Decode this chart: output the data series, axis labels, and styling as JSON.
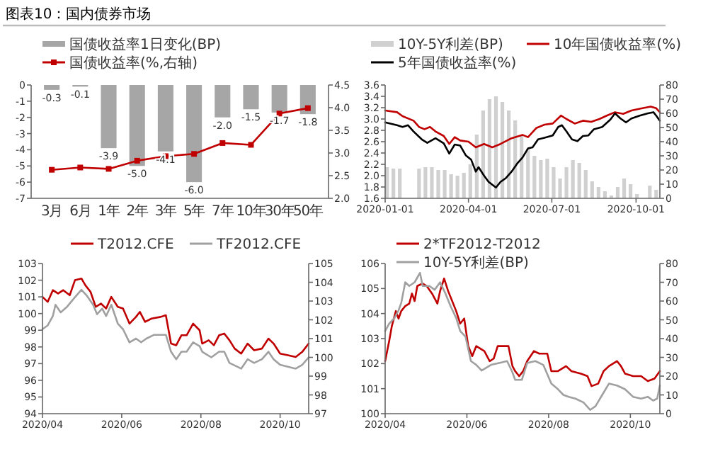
{
  "chart_data": [
    {
      "type": "bar",
      "title": "图表10：国内债券市场",
      "legend": "top",
      "categories": [
        "3月",
        "6月",
        "1年",
        "2年",
        "3年",
        "5年",
        "7年",
        "10年",
        "30年",
        "50年"
      ],
      "ylim": [
        -7,
        0
      ],
      "yticks": [
        -7,
        -6,
        -5,
        -4,
        -3,
        -2,
        -1,
        0
      ],
      "y2lim": [
        2,
        4.5
      ],
      "y2ticks": [
        {
          "value": 2,
          "label": "2.0"
        },
        2.5,
        {
          "value": 3,
          "label": "3.0"
        },
        3.5,
        {
          "value": 4,
          "label": "4.0"
        },
        4.5
      ],
      "series": [
        {
          "name": "国债收益率1日变化(BP)",
          "color": "#a6a6a6",
          "values": [
            -0.3,
            -0.1,
            -3.9,
            -5.0,
            -4.1,
            -6.0,
            -2.0,
            -1.5,
            -1.7,
            -1.8
          ],
          "value_labels": [
            "-0.3",
            "-0.1",
            "-3.9",
            "-5.0",
            "-4.1",
            "-6.0",
            "-2.0",
            "-1.5",
            "-1.7",
            "-1.8"
          ]
        },
        {
          "name": "国债收益率(%,右轴)",
          "type": "line",
          "axis": "y2",
          "color": "#c00000",
          "marker": "square",
          "values": [
            2.63,
            2.68,
            2.65,
            2.83,
            2.93,
            2.98,
            3.22,
            3.18,
            3.87,
            3.99
          ]
        }
      ]
    },
    {
      "type": "line",
      "legend": "top",
      "xlim": [
        "2020-01-01",
        "2020-10-27"
      ],
      "xticks": [
        {
          "value": "2020-01-01",
          "label": "2020-01-01"
        },
        {
          "value": "2020-04-01",
          "label": "2020-04-01"
        },
        {
          "value": "2020-07-01",
          "label": "2020-07-01"
        },
        {
          "value": "2020-10-01",
          "label": "2020-10-01"
        }
      ],
      "ylim": [
        1.6,
        3.6
      ],
      "yticks": [
        1.6,
        1.8,
        {
          "value": 2,
          "label": "2.0"
        },
        2.2,
        2.4,
        2.6,
        2.8,
        {
          "value": 3,
          "label": "3.0"
        },
        3.2,
        3.4,
        3.6
      ],
      "y2lim": [
        0,
        80
      ],
      "y2ticks": [
        0,
        10,
        20,
        30,
        40,
        50,
        60,
        70,
        80
      ],
      "series": [
        {
          "name": "10Y-5Y利差(BP)",
          "type": "bar",
          "axis": "y2",
          "color": "#d0d0d0",
          "x": [
            "2020-01-03",
            "2020-01-10",
            "2020-01-17",
            "2020-02-07",
            "2020-02-14",
            "2020-02-21",
            "2020-02-28",
            "2020-03-06",
            "2020-03-13",
            "2020-03-20",
            "2020-03-27",
            "2020-04-03",
            "2020-04-10",
            "2020-04-17",
            "2020-04-24",
            "2020-05-01",
            "2020-05-08",
            "2020-05-15",
            "2020-05-22",
            "2020-05-29",
            "2020-06-05",
            "2020-06-12",
            "2020-06-19",
            "2020-06-26",
            "2020-07-03",
            "2020-07-10",
            "2020-07-17",
            "2020-07-24",
            "2020-07-31",
            "2020-08-07",
            "2020-08-14",
            "2020-08-21",
            "2020-08-28",
            "2020-09-04",
            "2020-09-11",
            "2020-09-18",
            "2020-09-25",
            "2020-10-02",
            "2020-10-16",
            "2020-10-23"
          ],
          "values": [
            22,
            21,
            21,
            21,
            22,
            22,
            20,
            20,
            17,
            16,
            18,
            24,
            45,
            62,
            70,
            72,
            68,
            62,
            55,
            45,
            35,
            30,
            27,
            28,
            22,
            14,
            22,
            27,
            25,
            20,
            12,
            8,
            5,
            2,
            8,
            14,
            10,
            3,
            9,
            6
          ]
        },
        {
          "name": "10年国债收益率(%)",
          "color": "#c00000",
          "x": [
            "2020-01-01",
            "2020-01-14",
            "2020-01-20",
            "2020-02-01",
            "2020-02-07",
            "2020-02-13",
            "2020-02-19",
            "2020-02-25",
            "2020-03-05",
            "2020-03-11",
            "2020-03-17",
            "2020-03-23",
            "2020-04-01",
            "2020-04-09",
            "2020-04-18",
            "2020-04-27",
            "2020-05-06",
            "2020-05-18",
            "2020-05-30",
            "2020-06-05",
            "2020-06-14",
            "2020-06-23",
            "2020-07-02",
            "2020-07-11",
            "2020-07-17",
            "2020-07-26",
            "2020-08-04",
            "2020-08-13",
            "2020-08-22",
            "2020-08-30",
            "2020-09-08",
            "2020-09-17",
            "2020-09-26",
            "2020-10-08",
            "2020-10-17",
            "2020-10-23",
            "2020-10-27"
          ],
          "values": [
            3.15,
            3.12,
            3.05,
            2.97,
            2.86,
            2.82,
            2.86,
            2.78,
            2.7,
            2.56,
            2.68,
            2.62,
            2.6,
            2.5,
            2.56,
            2.5,
            2.56,
            2.66,
            2.72,
            2.68,
            2.84,
            2.9,
            2.92,
            3.06,
            3.0,
            2.92,
            2.97,
            2.95,
            3.0,
            3.06,
            3.12,
            3.09,
            3.15,
            3.19,
            3.22,
            3.19,
            3.12
          ]
        },
        {
          "name": "5年国债收益率(%)",
          "color": "#000000",
          "x": [
            "2020-01-01",
            "2020-01-14",
            "2020-01-20",
            "2020-01-26",
            "2020-02-01",
            "2020-02-10",
            "2020-02-16",
            "2020-02-25",
            "2020-03-05",
            "2020-03-11",
            "2020-03-17",
            "2020-03-23",
            "2020-03-29",
            "2020-04-04",
            "2020-04-09",
            "2020-04-12",
            "2020-04-18",
            "2020-04-23",
            "2020-04-27",
            "2020-05-01",
            "2020-05-06",
            "2020-05-12",
            "2020-05-18",
            "2020-05-24",
            "2020-05-30",
            "2020-06-05",
            "2020-06-10",
            "2020-06-16",
            "2020-06-23",
            "2020-07-02",
            "2020-07-08",
            "2020-07-12",
            "2020-07-17",
            "2020-07-23",
            "2020-07-29",
            "2020-08-04",
            "2020-08-10",
            "2020-08-16",
            "2020-08-25",
            "2020-09-03",
            "2020-09-08",
            "2020-09-14",
            "2020-09-20",
            "2020-09-26",
            "2020-10-05",
            "2020-10-14",
            "2020-10-20",
            "2020-10-23",
            "2020-10-27"
          ],
          "values": [
            2.94,
            2.89,
            2.86,
            2.89,
            2.78,
            2.64,
            2.58,
            2.66,
            2.57,
            2.39,
            2.55,
            2.53,
            2.36,
            2.28,
            2.07,
            2.15,
            2.0,
            1.89,
            1.84,
            1.79,
            1.89,
            1.96,
            2.07,
            2.21,
            2.32,
            2.48,
            2.5,
            2.64,
            2.67,
            2.71,
            2.86,
            2.89,
            2.78,
            2.64,
            2.61,
            2.7,
            2.71,
            2.82,
            2.86,
            2.99,
            3.1,
            3.01,
            2.94,
            3.01,
            3.06,
            3.1,
            3.12,
            3.06,
            2.97
          ]
        }
      ]
    },
    {
      "type": "line",
      "legend": "top",
      "xlim": [
        "2020-04-01",
        "2020-10-23"
      ],
      "xticks": [
        {
          "value": "2020-04-01",
          "label": "2020/04"
        },
        {
          "value": "2020-06-01",
          "label": "2020/06"
        },
        {
          "value": "2020-08-01",
          "label": "2020/08"
        },
        {
          "value": "2020-10-01",
          "label": "2020/10"
        }
      ],
      "ylim": [
        94,
        103
      ],
      "yticks": [
        94,
        95,
        96,
        97,
        98,
        99,
        100,
        101,
        102,
        103
      ],
      "y2lim": [
        97,
        105
      ],
      "y2ticks": [
        97,
        98,
        99,
        100,
        101,
        102,
        103,
        104,
        105
      ],
      "series": [
        {
          "name": "T2012.CFE",
          "color": "#c00000",
          "x": [
            "2020-04-01",
            "2020-04-05",
            "2020-04-09",
            "2020-04-13",
            "2020-04-17",
            "2020-04-22",
            "2020-04-26",
            "2020-05-01",
            "2020-05-04",
            "2020-05-08",
            "2020-05-12",
            "2020-05-16",
            "2020-05-20",
            "2020-05-24",
            "2020-05-29",
            "2020-06-02",
            "2020-06-07",
            "2020-06-12",
            "2020-06-15",
            "2020-06-19",
            "2020-06-24",
            "2020-07-01",
            "2020-07-05",
            "2020-07-09",
            "2020-07-13",
            "2020-07-17",
            "2020-07-21",
            "2020-07-26",
            "2020-07-31",
            "2020-08-02",
            "2020-08-07",
            "2020-08-11",
            "2020-08-15",
            "2020-08-19",
            "2020-08-23",
            "2020-08-27",
            "2020-09-01",
            "2020-09-06",
            "2020-09-11",
            "2020-09-17",
            "2020-09-22",
            "2020-09-26",
            "2020-10-01",
            "2020-10-07",
            "2020-10-13",
            "2020-10-18",
            "2020-10-23"
          ],
          "values": [
            101.0,
            100.7,
            101.4,
            101.2,
            101.4,
            101.1,
            102.0,
            102.1,
            101.7,
            101.3,
            100.4,
            100.6,
            100.3,
            101.0,
            100.4,
            100.3,
            99.4,
            99.8,
            100.1,
            99.5,
            99.7,
            99.8,
            99.9,
            98.2,
            98.1,
            98.7,
            98.7,
            99.4,
            99.0,
            98.2,
            98.4,
            98.1,
            98.7,
            98.8,
            98.4,
            97.9,
            97.6,
            98.2,
            97.8,
            97.9,
            98.5,
            98.2,
            97.6,
            97.5,
            97.4,
            97.7,
            98.2
          ]
        },
        {
          "name": "TF2012.CFE",
          "axis": "y2",
          "color": "#a0a0a0",
          "x": [
            "2020-04-01",
            "2020-04-05",
            "2020-04-09",
            "2020-04-11",
            "2020-04-15",
            "2020-04-20",
            "2020-04-26",
            "2020-05-01",
            "2020-05-05",
            "2020-05-10",
            "2020-05-13",
            "2020-05-17",
            "2020-05-20",
            "2020-05-24",
            "2020-05-29",
            "2020-06-02",
            "2020-06-07",
            "2020-06-12",
            "2020-06-16",
            "2020-06-20",
            "2020-06-26",
            "2020-07-05",
            "2020-07-09",
            "2020-07-13",
            "2020-07-17",
            "2020-07-21",
            "2020-07-26",
            "2020-07-31",
            "2020-08-02",
            "2020-08-09",
            "2020-08-15",
            "2020-08-19",
            "2020-08-23",
            "2020-09-01",
            "2020-09-06",
            "2020-09-11",
            "2020-09-17",
            "2020-09-22",
            "2020-09-26",
            "2020-10-01",
            "2020-10-07",
            "2020-10-13",
            "2020-10-18",
            "2020-10-23"
          ],
          "values": [
            101.5,
            101.7,
            102.2,
            102.8,
            102.4,
            102.7,
            103.2,
            103.6,
            103.3,
            102.8,
            102.3,
            102.6,
            102.2,
            102.8,
            101.8,
            101.5,
            100.8,
            101.0,
            100.8,
            101.0,
            101.2,
            101.2,
            100.3,
            99.9,
            100.3,
            100.3,
            100.8,
            100.6,
            100.3,
            100.0,
            100.3,
            100.3,
            99.7,
            99.4,
            99.9,
            99.7,
            99.9,
            100.3,
            99.9,
            99.6,
            99.5,
            99.4,
            99.6,
            100.0
          ]
        }
      ]
    },
    {
      "type": "line",
      "legend": "top",
      "xlim": [
        "2020-04-01",
        "2020-10-23"
      ],
      "xticks": [
        {
          "value": "2020-04-01",
          "label": "2020/04"
        },
        {
          "value": "2020-06-01",
          "label": "2020/06"
        },
        {
          "value": "2020-08-01",
          "label": "2020/08"
        },
        {
          "value": "2020-10-01",
          "label": "2020/10"
        }
      ],
      "ylim": [
        100,
        106
      ],
      "yticks": [
        100,
        101,
        102,
        103,
        104,
        105,
        106
      ],
      "y2lim": [
        0,
        80
      ],
      "y2ticks": [
        0,
        10,
        20,
        30,
        40,
        50,
        60,
        70,
        80
      ],
      "series": [
        {
          "name": "2*TF2012-T2012",
          "color": "#c00000",
          "x": [
            "2020-04-01",
            "2020-04-04",
            "2020-04-06",
            "2020-04-09",
            "2020-04-11",
            "2020-04-13",
            "2020-04-16",
            "2020-04-19",
            "2020-04-21",
            "2020-04-23",
            "2020-04-25",
            "2020-04-29",
            "2020-05-02",
            "2020-05-06",
            "2020-05-10",
            "2020-05-12",
            "2020-05-15",
            "2020-05-18",
            "2020-05-21",
            "2020-05-24",
            "2020-05-27",
            "2020-05-30",
            "2020-06-02",
            "2020-06-05",
            "2020-06-08",
            "2020-06-11",
            "2020-06-14",
            "2020-06-18",
            "2020-06-21",
            "2020-06-24",
            "2020-06-29",
            "2020-07-02",
            "2020-07-05",
            "2020-07-07",
            "2020-07-10",
            "2020-07-13",
            "2020-07-16",
            "2020-07-21",
            "2020-07-25",
            "2020-07-31",
            "2020-08-03",
            "2020-08-08",
            "2020-08-14",
            "2020-08-18",
            "2020-08-25",
            "2020-08-30",
            "2020-09-02",
            "2020-09-07",
            "2020-09-11",
            "2020-09-15",
            "2020-09-21",
            "2020-09-24",
            "2020-09-27",
            "2020-10-03",
            "2020-10-09",
            "2020-10-14",
            "2020-10-19",
            "2020-10-23"
          ],
          "values": [
            102.1,
            102.9,
            103.5,
            104.1,
            103.8,
            104.1,
            104.3,
            104.4,
            104.8,
            104.5,
            105.1,
            105.2,
            105.1,
            104.8,
            104.4,
            104.9,
            105.4,
            104.9,
            104.5,
            104.1,
            103.6,
            103.8,
            102.7,
            102.3,
            102.7,
            102.6,
            102.5,
            102.1,
            102.2,
            102.7,
            102.7,
            102.7,
            101.9,
            101.7,
            101.5,
            101.7,
            102.1,
            102.5,
            102.4,
            102.4,
            101.7,
            101.7,
            101.9,
            101.7,
            101.6,
            101.5,
            101.1,
            101.2,
            101.7,
            101.9,
            102.1,
            101.9,
            101.6,
            101.5,
            101.5,
            101.3,
            101.4,
            101.7
          ]
        },
        {
          "name": "10Y-5Y利差(BP)",
          "axis": "y2",
          "color": "#a0a0a0",
          "x": [
            "2020-04-01",
            "2020-04-04",
            "2020-04-08",
            "2020-04-11",
            "2020-04-13",
            "2020-04-16",
            "2020-04-19",
            "2020-04-23",
            "2020-04-27",
            "2020-04-29",
            "2020-05-04",
            "2020-05-08",
            "2020-05-12",
            "2020-05-16",
            "2020-05-20",
            "2020-05-24",
            "2020-05-27",
            "2020-05-31",
            "2020-06-04",
            "2020-06-08",
            "2020-06-12",
            "2020-06-19",
            "2020-06-25",
            "2020-07-01",
            "2020-07-05",
            "2020-07-07",
            "2020-07-12",
            "2020-07-16",
            "2020-07-22",
            "2020-07-28",
            "2020-08-03",
            "2020-08-08",
            "2020-08-12",
            "2020-08-16",
            "2020-08-21",
            "2020-08-27",
            "2020-09-01",
            "2020-09-05",
            "2020-09-10",
            "2020-09-15",
            "2020-09-21",
            "2020-09-27",
            "2020-10-03",
            "2020-10-09",
            "2020-10-14",
            "2020-10-18",
            "2020-10-21",
            "2020-10-23"
          ],
          "values": [
            44,
            48,
            51,
            55,
            59,
            70,
            68,
            70,
            75,
            68,
            68,
            66,
            70,
            64,
            57,
            51,
            44,
            41,
            28,
            26,
            23,
            26,
            27,
            28,
            22,
            18,
            18,
            27,
            28,
            26,
            16,
            13,
            10,
            9,
            8,
            6,
            2,
            4,
            10,
            16,
            15,
            13,
            9,
            8,
            9,
            7,
            8,
            15
          ]
        }
      ]
    }
  ]
}
